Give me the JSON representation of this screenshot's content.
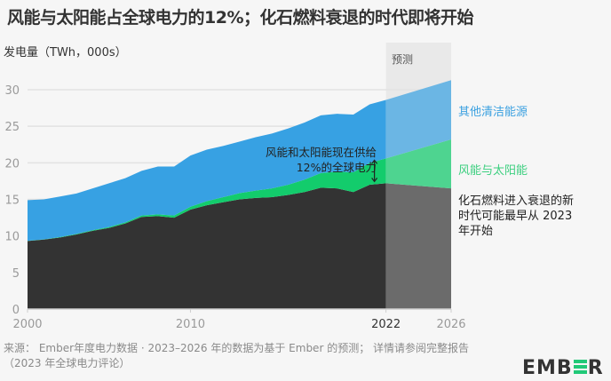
{
  "title": "风能与太阳能占全球电力的12%；化石燃料衰退的时代即将开始",
  "forecast_label": "预测",
  "annotation": {
    "line1": "风能和太阳能现在供给",
    "line2": "12%的全球电力"
  },
  "series_labels": {
    "other_clean": "其他清洁能源",
    "wind_solar": "风能与太阳能",
    "fossil": "化石燃料进入衰退的新时代可能最早从 2023 年开始"
  },
  "footer": "来源： Ember年度电力数据 · 2023–2026 年的数据为基于 Ember 的预测； 详情请参阅完整报告（2023 年全球电力评论）",
  "logo": {
    "left": "EMB",
    "right": "R"
  },
  "colors": {
    "fossil": "#333333",
    "fossil_forecast": "#6b6b6b",
    "wind_solar": "#13cc6c",
    "wind_solar_forecast": "#4ed490",
    "other_clean": "#37a1e3",
    "other_clean_forecast": "#6bb6e4",
    "forecast_band": "#e9e9e9",
    "grid": "#e2e2e2"
  },
  "chart_data": {
    "type": "area",
    "title": "风能与太阳能占全球电力的12%；化石燃料衰退的时代即将开始",
    "ylabel": "发电量（TWh，000s）",
    "xlabel": "",
    "ylim": [
      0,
      30
    ],
    "yticks": [
      0,
      5,
      10,
      15,
      20,
      25,
      30
    ],
    "xticks": [
      2000,
      2010,
      2022,
      2026
    ],
    "xlim": [
      2000,
      2026
    ],
    "forecast_start": 2022,
    "grid": true,
    "stacked": true,
    "x": [
      2000,
      2001,
      2002,
      2003,
      2004,
      2005,
      2006,
      2007,
      2008,
      2009,
      2010,
      2011,
      2012,
      2013,
      2014,
      2015,
      2016,
      2017,
      2018,
      2019,
      2020,
      2021,
      2022,
      2026
    ],
    "series": [
      {
        "name": "化石燃料",
        "values": [
          9.3,
          9.5,
          9.8,
          10.2,
          10.7,
          11.1,
          11.7,
          12.6,
          12.7,
          12.5,
          13.6,
          14.2,
          14.6,
          15.0,
          15.2,
          15.3,
          15.6,
          16.0,
          16.6,
          16.5,
          16.0,
          17.0,
          17.2,
          16.5
        ]
      },
      {
        "name": "风能与太阳能",
        "values": [
          0.03,
          0.04,
          0.06,
          0.08,
          0.1,
          0.12,
          0.15,
          0.2,
          0.25,
          0.3,
          0.4,
          0.55,
          0.7,
          0.85,
          1.0,
          1.2,
          1.4,
          1.7,
          2.0,
          2.3,
          2.7,
          3.0,
          3.4,
          6.7
        ]
      },
      {
        "name": "其他清洁能源",
        "values": [
          5.57,
          5.46,
          5.54,
          5.52,
          5.7,
          5.98,
          6.05,
          6.1,
          6.55,
          6.7,
          7.0,
          7.05,
          7.0,
          7.05,
          7.3,
          7.5,
          7.7,
          7.8,
          7.9,
          7.9,
          7.9,
          8.0,
          8.0,
          8.1
        ]
      }
    ],
    "annotations": [
      "风能和太阳能现在供给12%的全球电力",
      "化石燃料进入衰退的新时代可能最早从 2023 年开始"
    ]
  }
}
